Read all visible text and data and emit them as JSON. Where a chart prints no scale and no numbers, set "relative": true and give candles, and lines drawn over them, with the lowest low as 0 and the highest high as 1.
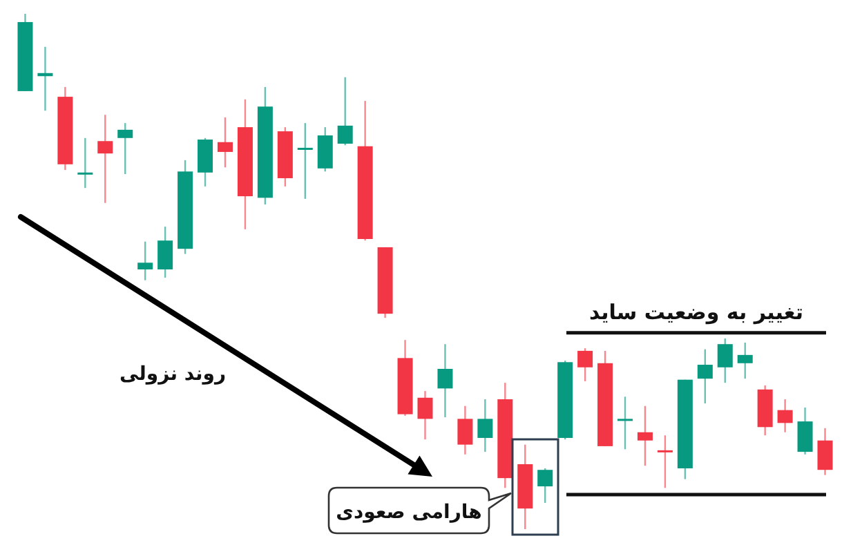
{
  "chart_data": {
    "type": "candlestick",
    "relative": true,
    "categories": [
      null,
      null,
      null,
      null,
      null,
      null,
      null,
      null,
      null,
      null,
      null,
      null,
      null,
      null,
      null,
      null,
      null,
      null,
      null,
      null,
      null,
      null,
      null,
      null,
      null,
      null,
      null,
      null,
      null,
      null,
      null,
      null,
      null,
      null,
      null,
      null,
      null,
      null,
      null,
      null,
      null
    ],
    "ohlc": [
      [
        0.85,
        1.0,
        0.85,
        0.984
      ],
      [
        0.879,
        0.936,
        0.812,
        0.885
      ],
      [
        0.839,
        0.858,
        0.697,
        0.708
      ],
      [
        0.689,
        0.759,
        0.662,
        0.692
      ],
      [
        0.753,
        0.804,
        0.633,
        0.729
      ],
      [
        0.759,
        0.788,
        0.689,
        0.775
      ],
      [
        0.504,
        0.558,
        0.483,
        0.517
      ],
      [
        0.504,
        0.587,
        0.488,
        0.56
      ],
      [
        0.544,
        0.716,
        0.534,
        0.694
      ],
      [
        0.692,
        0.759,
        0.665,
        0.756
      ],
      [
        0.751,
        0.799,
        0.702,
        0.732
      ],
      [
        0.78,
        0.834,
        0.582,
        0.646
      ],
      [
        0.643,
        0.858,
        0.63,
        0.82
      ],
      [
        0.772,
        0.78,
        0.665,
        0.681
      ],
      [
        0.737,
        0.788,
        0.641,
        0.74
      ],
      [
        0.7,
        0.78,
        0.694,
        0.764
      ],
      [
        0.748,
        0.877,
        0.745,
        0.783
      ],
      [
        0.743,
        0.831,
        0.56,
        0.563
      ],
      [
        0.547,
        0.547,
        0.41,
        0.418
      ],
      [
        0.332,
        0.367,
        0.22,
        0.223
      ],
      [
        0.255,
        0.268,
        0.174,
        0.214
      ],
      [
        0.273,
        0.359,
        0.217,
        0.311
      ],
      [
        0.214,
        0.239,
        0.145,
        0.164
      ],
      [
        0.177,
        0.252,
        0.15,
        0.214
      ],
      [
        0.252,
        0.284,
        0.08,
        0.099
      ],
      [
        0.126,
        0.164,
        0.0,
        0.04
      ],
      [
        0.083,
        0.118,
        0.051,
        0.115
      ],
      [
        0.177,
        0.327,
        0.174,
        0.324
      ],
      [
        0.346,
        0.351,
        0.287,
        0.314
      ],
      [
        0.322,
        0.346,
        0.161,
        0.161
      ],
      [
        0.212,
        0.257,
        0.155,
        0.214
      ],
      [
        0.188,
        0.239,
        0.123,
        0.172
      ],
      [
        0.153,
        0.182,
        0.08,
        0.15
      ],
      [
        0.118,
        0.29,
        0.097,
        0.29
      ],
      [
        0.292,
        0.349,
        0.244,
        0.319
      ],
      [
        0.314,
        0.37,
        0.284,
        0.359
      ],
      [
        0.322,
        0.362,
        0.292,
        0.338
      ],
      [
        0.271,
        0.279,
        0.182,
        0.198
      ],
      [
        0.231,
        0.252,
        0.188,
        0.206
      ],
      [
        0.15,
        0.236,
        0.145,
        0.209
      ],
      [
        0.172,
        0.196,
        0.105,
        0.115
      ]
    ],
    "colors": [
      "#089981",
      "#089981",
      "#f23645",
      "#089981",
      "#f23645",
      "#089981",
      "#089981",
      "#089981",
      "#089981",
      "#089981",
      "#f23645",
      "#f23645",
      "#089981",
      "#f23645",
      "#089981",
      "#089981",
      "#089981",
      "#f23645",
      "#f23645",
      "#f23645",
      "#f23645",
      "#089981",
      "#f23645",
      "#089981",
      "#f23645",
      "#f23645",
      "#089981",
      "#089981",
      "#f23645",
      "#f23645",
      "#089981",
      "#f23645",
      "#f23645",
      "#089981",
      "#089981",
      "#089981",
      "#089981",
      "#f23645",
      "#f23645",
      "#089981",
      "#f23645"
    ],
    "ref_lines": [
      {
        "axis": "y",
        "value": 0.381,
        "label": "تغییر به وضعیت ساید",
        "color": "#111111"
      },
      {
        "axis": "y",
        "value": 0.067,
        "color": "#111111"
      }
    ],
    "annotations": [
      {
        "text": "روند نزولی"
      },
      {
        "text": "هارامی صعودی"
      }
    ]
  }
}
